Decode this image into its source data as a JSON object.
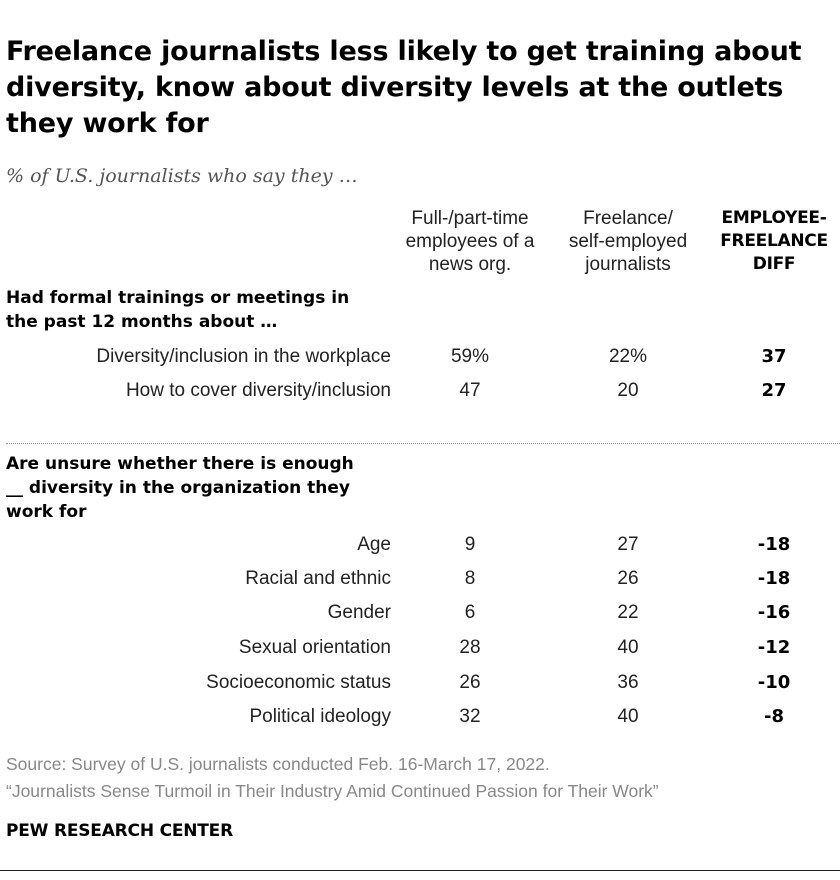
{
  "title": "Freelance journalists less likely to get training about diversity, know about diversity levels at the outlets they work for",
  "subtitle": "% of U.S. journalists who say they …",
  "columns": [
    {
      "line1": "Full-/part-time",
      "line2": "employees of a",
      "line3": "news org."
    },
    {
      "line1": "Freelance/",
      "line2": "self-employed",
      "line3": "journalists"
    },
    {
      "line1": "EMPLOYEE-",
      "line2": "FREELANCE",
      "line3": "DIFF"
    }
  ],
  "sections": [
    {
      "heading_line1": "Had formal trainings or meetings in",
      "heading_line2": "the past 12 months about …",
      "heading_line3": ""
    },
    {
      "heading_line1": "Are unsure whether there is enough",
      "heading_line2": "__ diversity in the organization they",
      "heading_line3": "work for"
    }
  ],
  "chart_data": {
    "type": "table",
    "title": "Freelance journalists less likely to get training about diversity, know about diversity levels at the outlets they work for",
    "subtitle": "% of U.S. journalists who say they …",
    "columns": [
      "Full-/part-time employees of a news org.",
      "Freelance/ self-employed journalists",
      "EMPLOYEE-FREELANCE DIFF"
    ],
    "rows": [
      {
        "section": "Had formal trainings or meetings in the past 12 months about …",
        "label": "Diversity/inclusion in the workplace",
        "employees": "59%",
        "freelance": "22%",
        "diff": "37"
      },
      {
        "section": "Had formal trainings or meetings in the past 12 months about …",
        "label": "How to cover diversity/inclusion",
        "employees": "47",
        "freelance": "20",
        "diff": "27"
      },
      {
        "section": "Are unsure whether there is enough __ diversity in the organization they work for",
        "label": "Age",
        "employees": "9",
        "freelance": "27",
        "diff": "-18"
      },
      {
        "section": "Are unsure whether there is enough __ diversity in the organization they work for",
        "label": "Racial and ethnic",
        "employees": "8",
        "freelance": "26",
        "diff": "-18"
      },
      {
        "section": "Are unsure whether there is enough __ diversity in the organization they work for",
        "label": "Gender",
        "employees": "6",
        "freelance": "22",
        "diff": "-16"
      },
      {
        "section": "Are unsure whether there is enough __ diversity in the organization they work for",
        "label": "Sexual orientation",
        "employees": "28",
        "freelance": "40",
        "diff": "-12"
      },
      {
        "section": "Are unsure whether there is enough __ diversity in the organization they work for",
        "label": "Socioeconomic status",
        "employees": "26",
        "freelance": "36",
        "diff": "-10"
      },
      {
        "section": "Are unsure whether there is enough __ diversity in the organization they work for",
        "label": "Political ideology",
        "employees": "32",
        "freelance": "40",
        "diff": "-8"
      }
    ]
  },
  "footer": {
    "source": "Source: Survey of U.S. journalists conducted Feb. 16-March 17, 2022.",
    "report": "“Journalists Sense Turmoil in Their Industry Amid Continued Passion for Their Work”",
    "brand": "PEW RESEARCH CENTER"
  },
  "colors": {
    "text": "#000000",
    "muted": "#888888",
    "subtitle": "#555555"
  }
}
